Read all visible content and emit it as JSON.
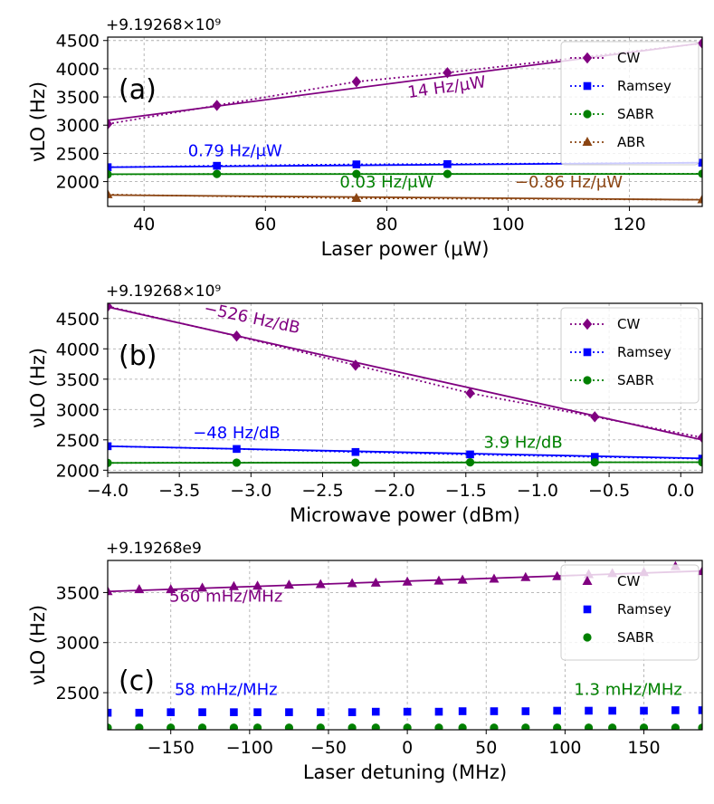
{
  "chart_data": [
    {
      "type": "line",
      "panel_label": "(a)",
      "offset_label": "+9.19268×10⁹",
      "xlabel": "Laser power (μW)",
      "ylabel": "νLO (Hz)",
      "xlim": [
        34,
        132
      ],
      "ylim": [
        1560,
        4560
      ],
      "xticks": [
        40,
        60,
        80,
        100,
        120
      ],
      "yticks": [
        2000,
        2500,
        3000,
        3500,
        4000,
        4500
      ],
      "xticklabels": [
        "40",
        "60",
        "80",
        "100",
        "120"
      ],
      "yticklabels": [
        "2000",
        "2500",
        "3000",
        "3500",
        "4000",
        "4500"
      ],
      "legend_position": "top-right",
      "series": [
        {
          "name": "CW",
          "color": "#800080",
          "marker": "diamond",
          "x": [
            34,
            52,
            75,
            90,
            132
          ],
          "y": [
            3020,
            3350,
            3770,
            3930,
            4450
          ],
          "fit": [
            3085,
            4455
          ]
        },
        {
          "name": "Ramsey",
          "color": "#0000ff",
          "marker": "square",
          "x": [
            34,
            52,
            75,
            90,
            132
          ],
          "y": [
            2255,
            2280,
            2305,
            2310,
            2335
          ],
          "fit": [
            2255,
            2335
          ]
        },
        {
          "name": "SABR",
          "color": "#008000",
          "marker": "circle",
          "x": [
            34,
            52,
            75,
            90,
            132
          ],
          "y": [
            2130,
            2135,
            2135,
            2135,
            2140
          ],
          "fit": [
            2132,
            2136
          ]
        },
        {
          "name": "ABR",
          "color": "#8b4513",
          "marker": "triangle",
          "x": [
            34,
            75,
            132
          ],
          "y": [
            1770,
            1705,
            1680
          ],
          "fit": [
            1762,
            1678
          ]
        }
      ],
      "annotations": [
        {
          "text": "14 Hz/μW",
          "color": "#800080",
          "x": 90,
          "y": 3580,
          "rotate": -8
        },
        {
          "text": "0.79 Hz/μW",
          "color": "#0000ff",
          "x": 55,
          "y": 2450,
          "rotate": 0
        },
        {
          "text": "0.03 Hz/μW",
          "color": "#008000",
          "x": 80,
          "y": 1900,
          "rotate": 0
        },
        {
          "text": "−0.86 Hz/μW",
          "color": "#8b4513",
          "x": 110,
          "y": 1900,
          "rotate": 0
        }
      ]
    },
    {
      "type": "line",
      "panel_label": "(b)",
      "offset_label": "+9.19268×10⁹",
      "xlabel": "Microwave power (dBm)",
      "ylabel": "νLO (Hz)",
      "xlim": [
        -4.0,
        0.15
      ],
      "ylim": [
        1960,
        4750
      ],
      "xticks": [
        -4.0,
        -3.5,
        -3.0,
        -2.5,
        -2.0,
        -1.5,
        -1.0,
        -0.5,
        0.0
      ],
      "yticks": [
        2000,
        2500,
        3000,
        3500,
        4000,
        4500
      ],
      "xticklabels": [
        "−4.0",
        "−3.5",
        "−3.0",
        "−2.5",
        "−2.0",
        "−1.5",
        "−1.0",
        "−0.5",
        "0.0"
      ],
      "yticklabels": [
        "2000",
        "2500",
        "3000",
        "3500",
        "4000",
        "4500"
      ],
      "legend_position": "top-right",
      "series": [
        {
          "name": "CW",
          "color": "#800080",
          "marker": "diamond",
          "x": [
            -4.0,
            -3.1,
            -2.27,
            -1.47,
            -0.6,
            0.15
          ],
          "y": [
            4700,
            4210,
            3730,
            3270,
            2880,
            2540
          ],
          "fit": [
            4690,
            2500
          ]
        },
        {
          "name": "Ramsey",
          "color": "#0000ff",
          "marker": "square",
          "x": [
            -4.0,
            -3.1,
            -2.27,
            -1.47,
            -0.6,
            0.15
          ],
          "y": [
            2395,
            2350,
            2300,
            2260,
            2220,
            2190
          ],
          "fit": [
            2395,
            2195
          ]
        },
        {
          "name": "SABR",
          "color": "#008000",
          "marker": "circle",
          "x": [
            -4.0,
            -3.1,
            -2.27,
            -1.47,
            -0.6,
            0.15
          ],
          "y": [
            2120,
            2125,
            2125,
            2130,
            2130,
            2130
          ],
          "fit": [
            2120,
            2132
          ]
        }
      ],
      "annotations": [
        {
          "text": "−526 Hz/dB",
          "color": "#800080",
          "x": -3.0,
          "y": 4420,
          "rotate": 12
        },
        {
          "text": "−48 Hz/dB",
          "color": "#0000ff",
          "x": -3.1,
          "y": 2530,
          "rotate": 0
        },
        {
          "text": "3.9 Hz/dB",
          "color": "#008000",
          "x": -1.1,
          "y": 2370,
          "rotate": 0
        }
      ]
    },
    {
      "type": "scatter",
      "panel_label": "(c)",
      "offset_label": "+9.19268e9",
      "xlabel": "Laser detuning (MHz)",
      "ylabel": "νLO (Hz)",
      "xlim": [
        -190,
        187
      ],
      "ylim": [
        2130,
        3820
      ],
      "xticks": [
        -150,
        -100,
        -50,
        0,
        50,
        100,
        150
      ],
      "yticks": [
        2500,
        3000,
        3500
      ],
      "xticklabels": [
        "−150",
        "−100",
        "−50",
        "0",
        "50",
        "100",
        "150"
      ],
      "yticklabels": [
        "2500",
        "3000",
        "3500"
      ],
      "legend_position": "top-right",
      "series": [
        {
          "name": "CW",
          "color": "#800080",
          "marker": "triangle",
          "x": [
            -190,
            -170,
            -150,
            -130,
            -110,
            -95,
            -75,
            -55,
            -35,
            -20,
            0,
            20,
            35,
            55,
            75,
            95,
            115,
            130,
            150,
            170,
            187
          ],
          "y": [
            3510,
            3530,
            3530,
            3545,
            3560,
            3565,
            3575,
            3580,
            3590,
            3595,
            3605,
            3615,
            3625,
            3635,
            3650,
            3660,
            3680,
            3690,
            3700,
            3760,
            3710
          ],
          "fit": [
            3510,
            3715
          ]
        },
        {
          "name": "Ramsey",
          "color": "#0000ff",
          "marker": "square",
          "x": [
            -190,
            -170,
            -150,
            -130,
            -110,
            -95,
            -75,
            -55,
            -35,
            -20,
            0,
            20,
            35,
            55,
            75,
            95,
            115,
            130,
            150,
            170,
            187
          ],
          "y": [
            2300,
            2300,
            2305,
            2305,
            2305,
            2305,
            2305,
            2305,
            2305,
            2310,
            2310,
            2310,
            2315,
            2315,
            2315,
            2320,
            2320,
            2320,
            2320,
            2325,
            2325
          ]
        },
        {
          "name": "SABR",
          "color": "#008000",
          "marker": "circle",
          "x": [
            -190,
            -170,
            -150,
            -130,
            -110,
            -95,
            -75,
            -55,
            -35,
            -20,
            0,
            20,
            35,
            55,
            75,
            95,
            115,
            130,
            150,
            170,
            187
          ],
          "y": [
            2150,
            2150,
            2150,
            2150,
            2150,
            2150,
            2150,
            2150,
            2150,
            2150,
            2150,
            2150,
            2150,
            2150,
            2150,
            2150,
            2150,
            2150,
            2150,
            2150,
            2150
          ]
        }
      ],
      "annotations": [
        {
          "text": "560 mHz/MHz",
          "color": "#800080",
          "x": -115,
          "y": 3410,
          "rotate": 0
        },
        {
          "text": "58 mHz/MHz",
          "color": "#0000ff",
          "x": -115,
          "y": 2480,
          "rotate": 0
        },
        {
          "text": "1.3 mHz/MHz",
          "color": "#008000",
          "x": 140,
          "y": 2480,
          "rotate": 0
        }
      ]
    }
  ]
}
